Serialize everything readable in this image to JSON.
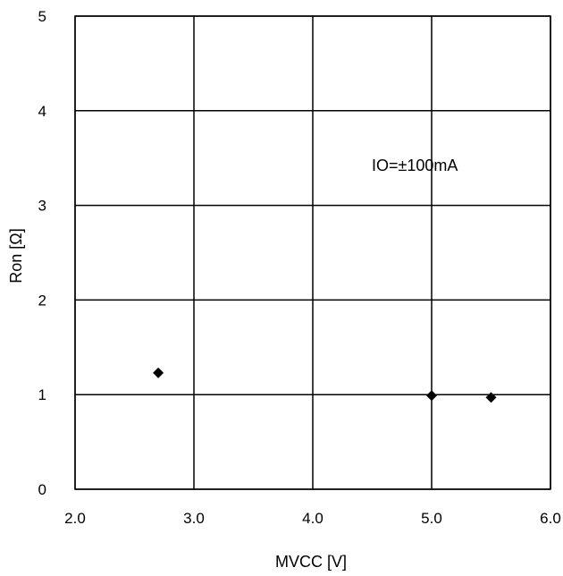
{
  "chart_data": {
    "type": "scatter",
    "title": "",
    "xlabel": "MVCC [V]",
    "ylabel": "Ron [Ω]",
    "xlim": [
      2.0,
      6.0
    ],
    "ylim": [
      0,
      5
    ],
    "x_ticks": [
      "2.0",
      "3.0",
      "4.0",
      "5.0",
      "6.0"
    ],
    "y_ticks": [
      "0",
      "1",
      "2",
      "3",
      "4",
      "5"
    ],
    "grid": true,
    "annotation": "IO=±100mA",
    "marker": "diamond",
    "marker_color": "#000000",
    "series": [
      {
        "points": [
          {
            "x": 2.7,
            "y": 1.23
          },
          {
            "x": 5.0,
            "y": 0.99
          },
          {
            "x": 5.5,
            "y": 0.97
          }
        ]
      }
    ]
  }
}
